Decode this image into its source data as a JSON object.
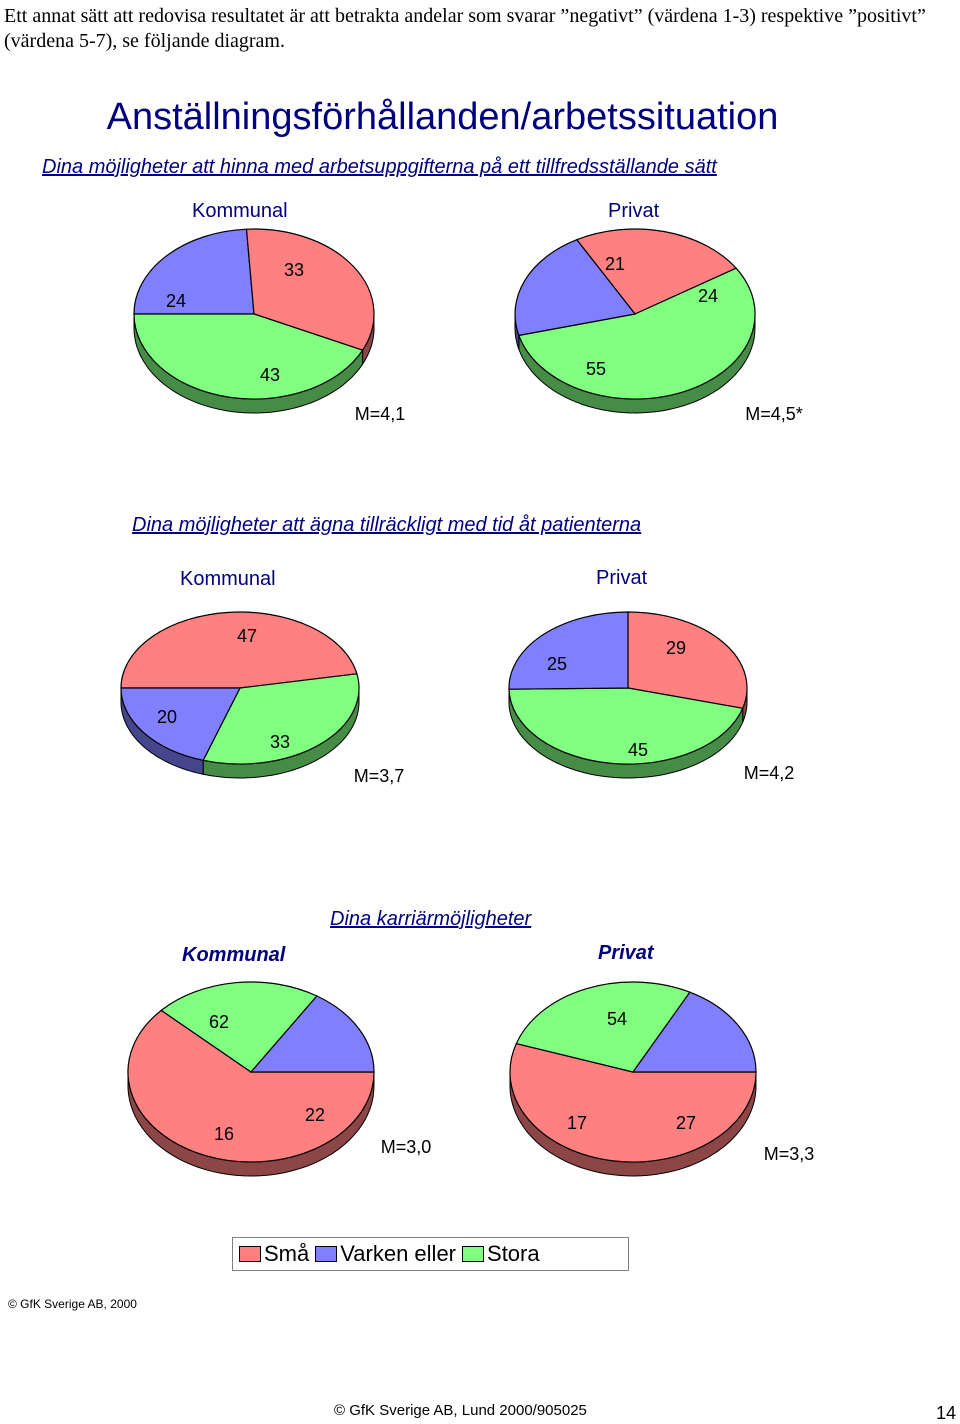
{
  "intro_text": "Ett annat sätt att redovisa resultatet är att betrakta andelar som svarar ”negativt” (värdena 1-3) respektive ”positivt” (värdena 5-7), se följande diagram.",
  "main_title": "Anställningsförhållanden/arbetssituation",
  "colors": {
    "Små": "#ff8080",
    "Varken eller": "#8080ff",
    "Stora": "#80ff80"
  },
  "legend": [
    {
      "label": "Små",
      "color": "#ff8080"
    },
    {
      "label": "Varken eller",
      "color": "#8080ff"
    },
    {
      "label": "Stora",
      "color": "#80ff80"
    }
  ],
  "questions": [
    {
      "title": "Dina möjligheter att hinna med arbetsuppgifterna på ett tillfredsställande sätt",
      "kommunal_label": "Kommunal",
      "privat_label": "Privat"
    },
    {
      "title": "Dina möjligheter att ägna tillräckligt med tid åt patienterna",
      "kommunal_label": "Kommunal",
      "privat_label": "Privat"
    },
    {
      "title": "Dina karriärmöjligheter",
      "kommunal_label": "Kommunal",
      "privat_label": "Privat"
    }
  ],
  "chart_data": [
    {
      "type": "pie",
      "title": "Dina möjligheter att hinna med arbetsuppgifterna på ett tillfredsställande sätt",
      "group": "Kommunal",
      "categories": [
        "Små",
        "Varken eller",
        "Stora"
      ],
      "values": [
        33,
        24,
        43
      ],
      "mean_label": "M=4,1"
    },
    {
      "type": "pie",
      "title": "Dina möjligheter att hinna med arbetsuppgifterna på ett tillfredsställande sätt",
      "group": "Privat",
      "categories": [
        "Små",
        "Varken eller",
        "Stora"
      ],
      "values": [
        24,
        21,
        55
      ],
      "mean_label": "M=4,5*"
    },
    {
      "type": "pie",
      "title": "Dina möjligheter att ägna tillräckligt med tid åt patienterna",
      "group": "Kommunal",
      "categories": [
        "Små",
        "Varken eller",
        "Stora"
      ],
      "values": [
        47,
        20,
        33
      ],
      "mean_label": "M=3,7"
    },
    {
      "type": "pie",
      "title": "Dina möjligheter att ägna tillräckligt med tid åt patienterna",
      "group": "Privat",
      "categories": [
        "Små",
        "Varken eller",
        "Stora"
      ],
      "values": [
        29,
        25,
        45
      ],
      "mean_label": "M=4,2"
    },
    {
      "type": "pie",
      "title": "Dina karriärmöjligheter",
      "group": "Kommunal",
      "categories": [
        "Små",
        "Varken eller",
        "Stora"
      ],
      "values": [
        62,
        16,
        22
      ],
      "mean_label": "M=3,0"
    },
    {
      "type": "pie",
      "title": "Dina karriärmöjligheter",
      "group": "Privat",
      "categories": [
        "Små",
        "Varken eller",
        "Stora"
      ],
      "values": [
        54,
        17,
        27
      ],
      "mean_label": "M=3,3"
    }
  ],
  "copyright_small": "© GfK Sverige AB, 2000",
  "footer": "© GfK Sverige AB, Lund 2000/905025",
  "page_number": "14"
}
